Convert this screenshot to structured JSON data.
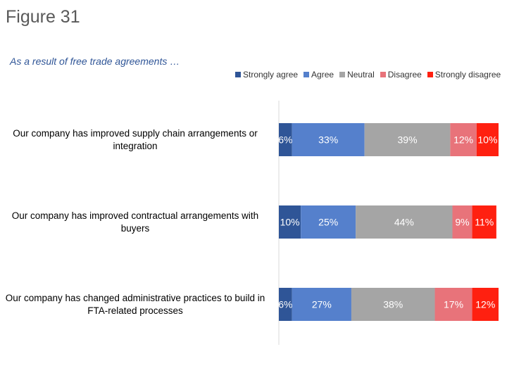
{
  "figure_label": "Figure 31",
  "chart_data": {
    "type": "bar",
    "orientation": "horizontal",
    "stacked": true,
    "title": "As a result of free trade agreements …",
    "categories": [
      "Our company has improved supply chain arrangements or integration",
      "Our company has improved contractual arrangements with buyers",
      "Our company has changed administrative practices to build in FTA-related processes"
    ],
    "series": [
      {
        "name": "Strongly agree",
        "color": "#2F5597",
        "values": [
          6,
          10,
          6
        ]
      },
      {
        "name": "Agree",
        "color": "#5580CC",
        "values": [
          33,
          25,
          27
        ]
      },
      {
        "name": "Neutral",
        "color": "#A5A5A5",
        "values": [
          39,
          44,
          38
        ]
      },
      {
        "name": "Disagree",
        "color": "#E8737A",
        "values": [
          12,
          9,
          17
        ]
      },
      {
        "name": "Strongly disagree",
        "color": "#FF2010",
        "values": [
          10,
          11,
          12
        ]
      }
    ],
    "value_suffix": "%",
    "xlim": [
      0,
      100
    ],
    "grid": false,
    "legend_position": "top"
  }
}
